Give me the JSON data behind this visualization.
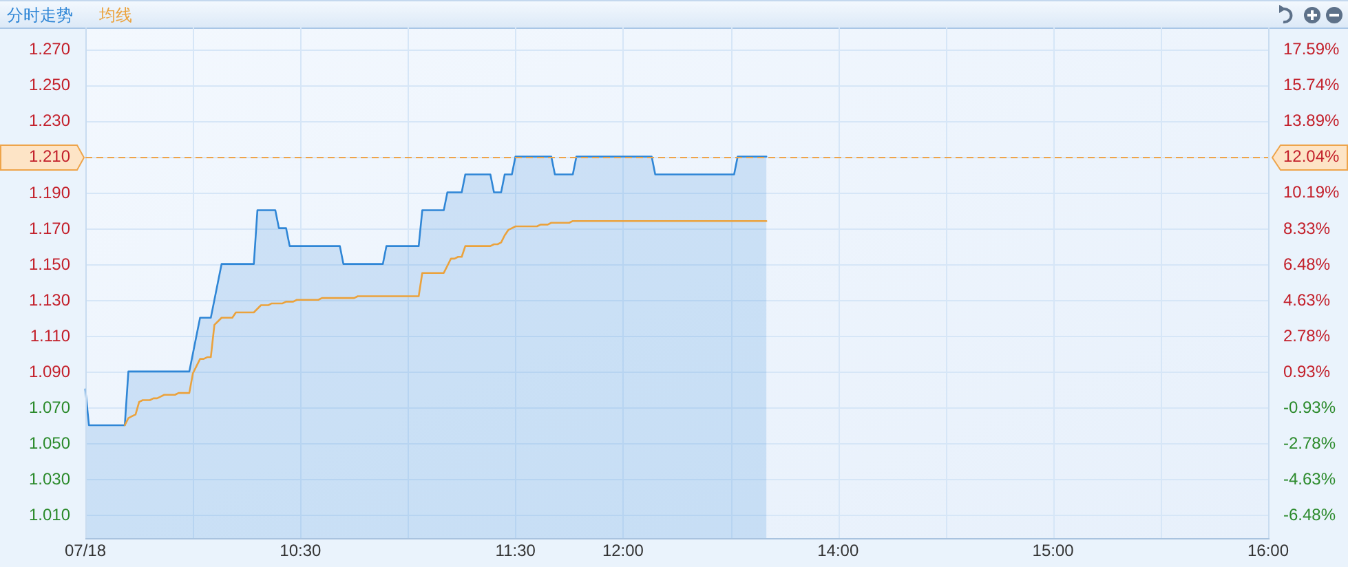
{
  "chart_data": {
    "type": "area",
    "categories": [
      "07/18",
      null,
      null,
      null,
      null,
      null,
      null,
      null,
      null,
      null,
      null,
      null,
      null,
      null,
      null,
      null,
      null,
      null,
      null,
      null,
      null,
      null,
      null,
      null,
      null,
      null,
      null,
      null,
      null,
      null,
      null,
      null,
      null,
      null,
      null,
      null,
      null,
      null,
      null,
      null,
      null,
      null,
      null,
      null,
      null,
      null,
      null,
      null,
      null,
      null,
      null,
      null,
      null,
      null,
      null,
      null,
      null,
      null,
      null,
      null,
      "10:30",
      null,
      null,
      null,
      null,
      null,
      null,
      null,
      null,
      null,
      null,
      null,
      null,
      null,
      null,
      null,
      null,
      null,
      null,
      null,
      null,
      null,
      null,
      null,
      null,
      null,
      null,
      null,
      null,
      null,
      null,
      null,
      null,
      null,
      null,
      null,
      null,
      null,
      null,
      null,
      null,
      null,
      null,
      null,
      null,
      null,
      null,
      null,
      null,
      null,
      null,
      null,
      null,
      null,
      null,
      null,
      null,
      null,
      null,
      null,
      "11:30",
      null,
      null,
      null,
      null,
      null,
      null,
      null,
      null,
      null,
      null,
      null,
      null,
      null,
      null,
      null,
      null,
      null,
      null,
      null,
      null,
      null,
      null,
      null,
      null,
      null,
      null,
      null,
      null,
      null,
      "12:00",
      null,
      null,
      null,
      null,
      null,
      null,
      null,
      null,
      null,
      null,
      null,
      null,
      null,
      null,
      null,
      null,
      null,
      null,
      null,
      null,
      null,
      null,
      null,
      null,
      null,
      null,
      null,
      null,
      null,
      null,
      null,
      null,
      null,
      null,
      null,
      null,
      null,
      null,
      null,
      null,
      null,
      null,
      null,
      null,
      null,
      null,
      null,
      null,
      null,
      null,
      null,
      null,
      null,
      null,
      null,
      null,
      null,
      null,
      null,
      "14:00",
      null,
      null,
      null,
      null,
      null,
      null,
      null,
      null,
      null,
      null,
      null,
      null,
      null,
      null,
      null,
      null,
      null,
      null,
      null,
      null,
      null,
      null,
      null,
      null,
      null,
      null,
      null,
      null,
      null,
      null,
      null,
      null,
      null,
      null,
      null,
      null,
      null,
      null,
      null,
      null,
      null,
      null,
      null,
      null,
      null,
      null,
      null,
      null,
      null,
      null,
      null,
      null,
      null,
      null,
      null,
      null,
      null,
      null,
      null,
      "15:00",
      null,
      null,
      null,
      null,
      null,
      null,
      null,
      null,
      null,
      null,
      null,
      null,
      null,
      null,
      null,
      null,
      null,
      null,
      null,
      null,
      null,
      null,
      null,
      null,
      null,
      null,
      null,
      null,
      null,
      null,
      null,
      null,
      null,
      null,
      null,
      null,
      null,
      null,
      null,
      null,
      null,
      null,
      null,
      null,
      null,
      null,
      null,
      null,
      null,
      null,
      null,
      null,
      null,
      null,
      null,
      null,
      null,
      null,
      null,
      "16:00"
    ],
    "series": [
      {
        "name": "分时走势",
        "color": "#2f86d6",
        "values": [
          1.08,
          1.06,
          1.06,
          1.06,
          1.06,
          1.06,
          1.06,
          1.06,
          1.06,
          1.06,
          1.06,
          1.06,
          1.09,
          1.09,
          1.09,
          1.09,
          1.09,
          1.09,
          1.09,
          1.09,
          1.09,
          1.09,
          1.09,
          1.09,
          1.09,
          1.09,
          1.09,
          1.09,
          1.09,
          1.09,
          1.1,
          1.11,
          1.12,
          1.12,
          1.12,
          1.12,
          1.13,
          1.14,
          1.15,
          1.15,
          1.15,
          1.15,
          1.15,
          1.15,
          1.15,
          1.15,
          1.15,
          1.15,
          1.18,
          1.18,
          1.18,
          1.18,
          1.18,
          1.18,
          1.17,
          1.17,
          1.17,
          1.16,
          1.16,
          1.16,
          1.16,
          1.16,
          1.16,
          1.16,
          1.16,
          1.16,
          1.16,
          1.16,
          1.16,
          1.16,
          1.16,
          1.16,
          1.15,
          1.15,
          1.15,
          1.15,
          1.15,
          1.15,
          1.15,
          1.15,
          1.15,
          1.15,
          1.15,
          1.15,
          1.16,
          1.16,
          1.16,
          1.16,
          1.16,
          1.16,
          1.16,
          1.16,
          1.16,
          1.16,
          1.18,
          1.18,
          1.18,
          1.18,
          1.18,
          1.18,
          1.18,
          1.19,
          1.19,
          1.19,
          1.19,
          1.19,
          1.2,
          1.2,
          1.2,
          1.2,
          1.2,
          1.2,
          1.2,
          1.2,
          1.19,
          1.19,
          1.19,
          1.2,
          1.2,
          1.2,
          1.21,
          1.21,
          1.21,
          1.21,
          1.21,
          1.21,
          1.21,
          1.21,
          1.21,
          1.21,
          1.21,
          1.2,
          1.2,
          1.2,
          1.2,
          1.2,
          1.2,
          1.21,
          1.21,
          1.21,
          1.21,
          1.21,
          1.21,
          1.21,
          1.21,
          1.21,
          1.21,
          1.21,
          1.21,
          1.21,
          1.21,
          1.21,
          1.21,
          1.21,
          1.21,
          1.21,
          1.21,
          1.21,
          1.21,
          1.2,
          1.2,
          1.2,
          1.2,
          1.2,
          1.2,
          1.2,
          1.2,
          1.2,
          1.2,
          1.2,
          1.2,
          1.2,
          1.2,
          1.2,
          1.2,
          1.2,
          1.2,
          1.2,
          1.2,
          1.2,
          1.2,
          1.2,
          1.21,
          1.21,
          1.21,
          1.21,
          1.21,
          1.21,
          1.21,
          1.21,
          1.21,
          null,
          null,
          null,
          null,
          null,
          null,
          null,
          null,
          null,
          null,
          null,
          null,
          null,
          null,
          null,
          null,
          null,
          null,
          null,
          null,
          null,
          null,
          null,
          null,
          null,
          null,
          null,
          null,
          null,
          null,
          null,
          null,
          null,
          null,
          null,
          null,
          null,
          null,
          null,
          null,
          null,
          null,
          null,
          null,
          null,
          null,
          null,
          null,
          null,
          null,
          null,
          null,
          null,
          null,
          null,
          null,
          null,
          null,
          null,
          null,
          null,
          null,
          null,
          null,
          null,
          null,
          null,
          null,
          null,
          null,
          null,
          null,
          null,
          null,
          null,
          null,
          null,
          null,
          null,
          null,
          null,
          null,
          null,
          null,
          null,
          null,
          null,
          null,
          null,
          null,
          null,
          null,
          null,
          null,
          null,
          null,
          null,
          null,
          null,
          null,
          null,
          null,
          null,
          null,
          null,
          null,
          null,
          null,
          null,
          null,
          null,
          null,
          null,
          null,
          null,
          null,
          null,
          null,
          null,
          null,
          null,
          null,
          null,
          null,
          null,
          null,
          null,
          null,
          null,
          null,
          null,
          null,
          null,
          null,
          null,
          null,
          null,
          null,
          null,
          null
        ]
      },
      {
        "name": "均线",
        "type": "line",
        "color": "#eba23c",
        "values": [
          null,
          null,
          null,
          null,
          null,
          null,
          null,
          null,
          null,
          null,
          null,
          1.06,
          1.064,
          1.065,
          1.066,
          1.073,
          1.074,
          1.074,
          1.074,
          1.075,
          1.075,
          1.076,
          1.077,
          1.077,
          1.077,
          1.077,
          1.078,
          1.078,
          1.078,
          1.078,
          1.089,
          1.093,
          1.097,
          1.097,
          1.098,
          1.098,
          1.116,
          1.118,
          1.12,
          1.12,
          1.12,
          1.12,
          1.123,
          1.123,
          1.123,
          1.123,
          1.123,
          1.123,
          1.125,
          1.127,
          1.127,
          1.127,
          1.128,
          1.128,
          1.128,
          1.128,
          1.129,
          1.129,
          1.129,
          1.13,
          1.13,
          1.13,
          1.13,
          1.13,
          1.13,
          1.13,
          1.131,
          1.131,
          1.131,
          1.131,
          1.131,
          1.131,
          1.131,
          1.131,
          1.131,
          1.131,
          1.132,
          1.132,
          1.132,
          1.132,
          1.132,
          1.132,
          1.132,
          1.132,
          1.132,
          1.132,
          1.132,
          1.132,
          1.132,
          1.132,
          1.132,
          1.132,
          1.132,
          1.132,
          1.145,
          1.145,
          1.145,
          1.145,
          1.145,
          1.145,
          1.145,
          1.149,
          1.153,
          1.153,
          1.154,
          1.154,
          1.16,
          1.16,
          1.16,
          1.16,
          1.16,
          1.16,
          1.16,
          1.16,
          1.161,
          1.161,
          1.162,
          1.166,
          1.169,
          1.17,
          1.171,
          1.171,
          1.171,
          1.171,
          1.171,
          1.171,
          1.171,
          1.172,
          1.172,
          1.172,
          1.173,
          1.173,
          1.173,
          1.173,
          1.173,
          1.173,
          1.174,
          1.174,
          1.174,
          1.174,
          1.174,
          1.174,
          1.174,
          1.174,
          1.174,
          1.174,
          1.174,
          1.174,
          1.174,
          1.174,
          1.174,
          1.174,
          1.174,
          1.174,
          1.174,
          1.174,
          1.174,
          1.174,
          1.174,
          1.174,
          1.174,
          1.174,
          1.174,
          1.174,
          1.174,
          1.174,
          1.174,
          1.174,
          1.174,
          1.174,
          1.174,
          1.174,
          1.174,
          1.174,
          1.174,
          1.174,
          1.174,
          1.174,
          1.174,
          1.174,
          1.174,
          1.174,
          1.174,
          1.174,
          1.174,
          1.174,
          1.174,
          1.174,
          1.174,
          1.174,
          1.174,
          null,
          null,
          null,
          null,
          null,
          null,
          null,
          null,
          null,
          null,
          null,
          null,
          null,
          null,
          null,
          null,
          null,
          null,
          null,
          null,
          null,
          null,
          null,
          null,
          null,
          null,
          null,
          null,
          null,
          null,
          null,
          null,
          null,
          null,
          null,
          null,
          null,
          null,
          null,
          null,
          null,
          null,
          null,
          null,
          null,
          null,
          null,
          null,
          null,
          null,
          null,
          null,
          null,
          null,
          null,
          null,
          null,
          null,
          null,
          null,
          null,
          null,
          null,
          null,
          null,
          null,
          null,
          null,
          null,
          null,
          null,
          null,
          null,
          null,
          null,
          null,
          null,
          null,
          null,
          null,
          null,
          null,
          null,
          null,
          null,
          null,
          null,
          null,
          null,
          null,
          null,
          null,
          null,
          null,
          null,
          null,
          null,
          null,
          null,
          null,
          null,
          null,
          null,
          null,
          null,
          null,
          null,
          null,
          null,
          null,
          null,
          null,
          null,
          null,
          null,
          null,
          null,
          null,
          null,
          null,
          null,
          null,
          null,
          null,
          null,
          null,
          null,
          null,
          null,
          null,
          null,
          null,
          null,
          null,
          null,
          null,
          null,
          null,
          null,
          null
        ]
      }
    ],
    "ylim": [
      0.997,
      1.282
    ],
    "yticks": [
      {
        "value": 1.01,
        "label": "1.010"
      },
      {
        "value": 1.03,
        "label": "1.030"
      },
      {
        "value": 1.05,
        "label": "1.050"
      },
      {
        "value": 1.07,
        "label": "1.070"
      },
      {
        "value": 1.09,
        "label": "1.090"
      },
      {
        "value": 1.11,
        "label": "1.110"
      },
      {
        "value": 1.13,
        "label": "1.130"
      },
      {
        "value": 1.15,
        "label": "1.150"
      },
      {
        "value": 1.17,
        "label": "1.170"
      },
      {
        "value": 1.19,
        "label": "1.190"
      },
      {
        "value": 1.21,
        "label": "1.210"
      },
      {
        "value": 1.23,
        "label": "1.230"
      },
      {
        "value": 1.25,
        "label": "1.250"
      },
      {
        "value": 1.27,
        "label": "1.270"
      }
    ],
    "y2lim": [
      -7.69,
      18.7
    ],
    "y2ticks": [
      {
        "value": -6.48,
        "label": "-6.48%"
      },
      {
        "value": -4.63,
        "label": "-4.63%"
      },
      {
        "value": -2.78,
        "label": "-2.78%"
      },
      {
        "value": -0.93,
        "label": "-0.93%"
      },
      {
        "value": 0.93,
        "label": "0.93%"
      },
      {
        "value": 2.78,
        "label": "2.78%"
      },
      {
        "value": 4.63,
        "label": "4.63%"
      },
      {
        "value": 6.48,
        "label": "6.48%"
      },
      {
        "value": 8.33,
        "label": "8.33%"
      },
      {
        "value": 10.19,
        "label": "10.19%"
      },
      {
        "value": 12.04,
        "label": "12.04%"
      },
      {
        "value": 13.89,
        "label": "13.89%"
      },
      {
        "value": 15.74,
        "label": "15.74%"
      },
      {
        "value": 17.59,
        "label": "17.59%"
      }
    ],
    "grid": true,
    "legend": "top left",
    "ref_lines": [
      {
        "axis": "y",
        "value": 1.21,
        "color": "#eea44a",
        "line_style": "dashed"
      }
    ]
  }
}
